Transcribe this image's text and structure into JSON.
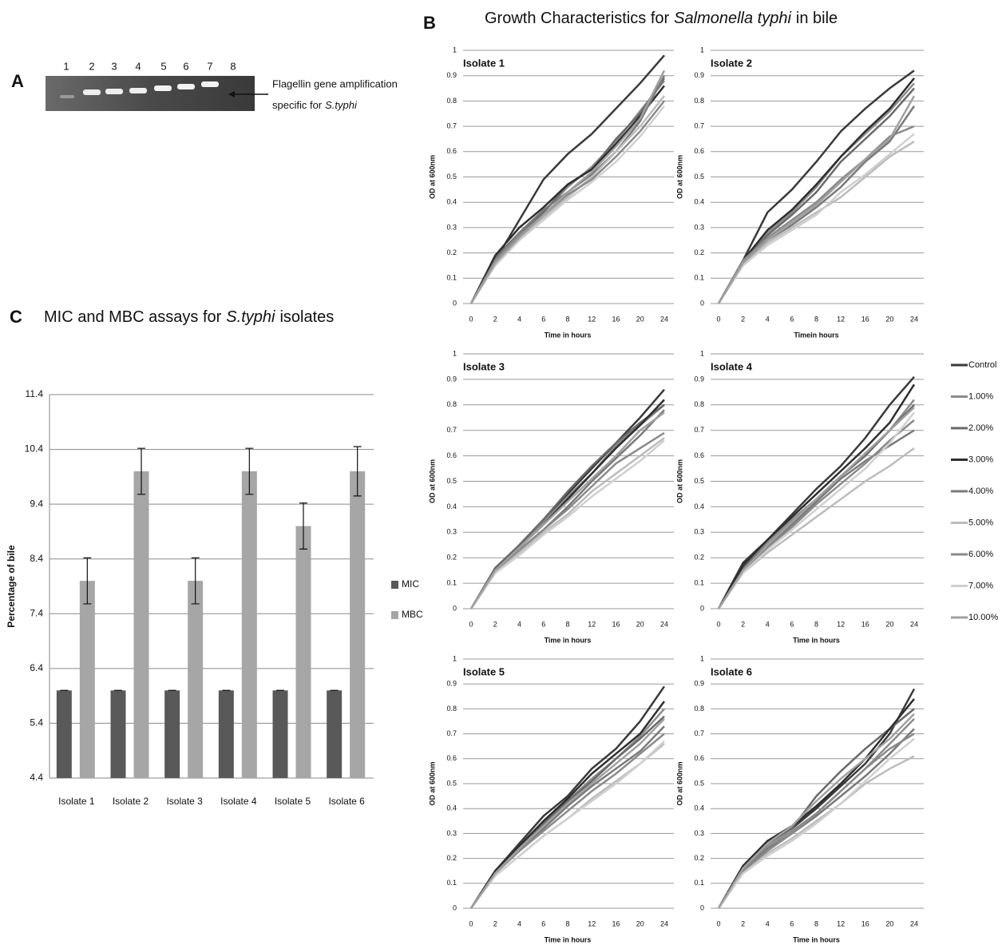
{
  "panel_labels": [
    "A",
    "B",
    "C"
  ],
  "gel": {
    "lanes": [
      "1",
      "2",
      "3",
      "4",
      "5",
      "6",
      "7",
      "8"
    ],
    "annotation": [
      "Flagellin gene amplification",
      "specific for",
      "S.typhi"
    ]
  },
  "growth_title": [
    "Growth Characteristics for",
    "Salmonella typhi",
    "in bile"
  ],
  "line_legend": [
    {
      "name": "Control",
      "color": "#3a3a3a"
    },
    {
      "name": "1.00%",
      "color": "#8c8c8c"
    },
    {
      "name": "2.00%",
      "color": "#6a6a6a"
    },
    {
      "name": "3.00%",
      "color": "#2e2e2e"
    },
    {
      "name": "4.00%",
      "color": "#7a7a7a"
    },
    {
      "name": "5.00%",
      "color": "#bcbcbc"
    },
    {
      "name": "6.00%",
      "color": "#8a8a8a"
    },
    {
      "name": "7.00%",
      "color": "#d0d0d0"
    },
    {
      "name": "10.00%",
      "color": "#a0a0a0"
    }
  ],
  "chart_data": [
    {
      "type": "bar",
      "title": [
        "MIC and MBC assays for",
        "S.typhi",
        "isolates"
      ],
      "y_label": "Percentage of bile",
      "categories": [
        "Isolate 1",
        "Isolate 2",
        "Isolate 3",
        "Isolate 4",
        "Isolate 5",
        "Isolate 6"
      ],
      "ylim": [
        4.4,
        11.4
      ],
      "yticks": [
        4.4,
        5.4,
        6.4,
        7.4,
        8.4,
        9.4,
        10.4,
        11.4
      ],
      "grid": true,
      "series": [
        {
          "name": "MIC",
          "color": "#595959",
          "values": [
            6,
            6,
            6,
            6,
            6,
            6
          ],
          "errors": [
            0,
            0,
            0,
            0,
            0,
            0
          ]
        },
        {
          "name": "MBC",
          "color": "#a6a6a6",
          "values": [
            8,
            10,
            8,
            10,
            9,
            10
          ],
          "errors": [
            0.42,
            0.42,
            0.42,
            0.42,
            0.42,
            0.45
          ]
        }
      ]
    },
    {
      "type": "line",
      "title": "Isolate 1",
      "x_label": "Time in hours",
      "y_label": "OD at 600nm",
      "categories": [
        "0",
        "2",
        "4",
        "6",
        "8",
        "12",
        "16",
        "20",
        "24"
      ],
      "ylim": [
        0,
        1
      ],
      "yticks": [
        0,
        0.1,
        0.2,
        0.3,
        0.4,
        0.5,
        0.6,
        0.7,
        0.8,
        0.9,
        1
      ],
      "grid": true,
      "series": [
        {
          "values": [
            0,
            0.17,
            0.33,
            0.49,
            0.59,
            0.67,
            0.77,
            0.87,
            0.98
          ]
        },
        {
          "values": [
            0,
            0.17,
            0.27,
            0.36,
            0.46,
            0.54,
            0.64,
            0.76,
            0.88
          ]
        },
        {
          "values": [
            0,
            0.18,
            0.28,
            0.36,
            0.47,
            0.53,
            0.65,
            0.75,
            0.89
          ]
        },
        {
          "values": [
            0,
            0.19,
            0.3,
            0.38,
            0.47,
            0.53,
            0.63,
            0.74,
            0.86
          ]
        },
        {
          "values": [
            0,
            0.17,
            0.28,
            0.37,
            0.44,
            0.51,
            0.6,
            0.72,
            0.9
          ]
        },
        {
          "values": [
            0,
            0.16,
            0.26,
            0.34,
            0.42,
            0.5,
            0.6,
            0.7,
            0.82
          ]
        },
        {
          "values": [
            0,
            0.17,
            0.27,
            0.35,
            0.43,
            0.49,
            0.58,
            0.68,
            0.8
          ]
        },
        {
          "values": [
            0,
            0.15,
            0.25,
            0.33,
            0.41,
            0.48,
            0.56,
            0.66,
            0.78
          ]
        },
        {
          "values": [
            0,
            0.16,
            0.26,
            0.35,
            0.44,
            0.52,
            0.62,
            0.73,
            0.92
          ]
        }
      ]
    },
    {
      "type": "line",
      "title": "Isolate 2",
      "x_label": "Timein hours",
      "y_label": "OD at 600nm",
      "categories": [
        "0",
        "2",
        "4",
        "6",
        "8",
        "12",
        "16",
        "20",
        "24"
      ],
      "ylim": [
        0,
        1
      ],
      "yticks": [
        0,
        0.1,
        0.2,
        0.3,
        0.4,
        0.5,
        0.6,
        0.7,
        0.8,
        0.9,
        1
      ],
      "grid": true,
      "series": [
        {
          "values": [
            0,
            0.17,
            0.36,
            0.45,
            0.56,
            0.68,
            0.77,
            0.85,
            0.92
          ]
        },
        {
          "values": [
            0,
            0.17,
            0.28,
            0.36,
            0.46,
            0.58,
            0.67,
            0.76,
            0.87
          ]
        },
        {
          "values": [
            0,
            0.17,
            0.27,
            0.35,
            0.44,
            0.56,
            0.65,
            0.74,
            0.85
          ]
        },
        {
          "values": [
            0,
            0.17,
            0.29,
            0.37,
            0.47,
            0.58,
            0.68,
            0.77,
            0.89
          ]
        },
        {
          "values": [
            0,
            0.17,
            0.25,
            0.31,
            0.38,
            0.46,
            0.56,
            0.64,
            0.78
          ]
        },
        {
          "values": [
            0,
            0.16,
            0.24,
            0.3,
            0.36,
            0.42,
            0.5,
            0.58,
            0.64
          ]
        },
        {
          "values": [
            0,
            0.17,
            0.26,
            0.33,
            0.4,
            0.49,
            0.57,
            0.66,
            0.7
          ]
        },
        {
          "values": [
            0,
            0.15,
            0.23,
            0.29,
            0.35,
            0.44,
            0.51,
            0.59,
            0.67
          ]
        },
        {
          "values": [
            0,
            0.16,
            0.25,
            0.32,
            0.39,
            0.48,
            0.57,
            0.65,
            0.82
          ]
        }
      ]
    },
    {
      "type": "line",
      "title": "Isolate 3",
      "x_label": "Time in hours",
      "y_label": "OD at 600nm",
      "categories": [
        "0",
        "2",
        "4",
        "6",
        "8",
        "12",
        "16",
        "20",
        "24"
      ],
      "ylim": [
        0,
        1
      ],
      "yticks": [
        0,
        0.1,
        0.2,
        0.3,
        0.4,
        0.5,
        0.6,
        0.7,
        0.8,
        0.9,
        1
      ],
      "grid": true,
      "series": [
        {
          "values": [
            0,
            0.15,
            0.25,
            0.35,
            0.45,
            0.55,
            0.65,
            0.75,
            0.86
          ]
        },
        {
          "values": [
            0,
            0.15,
            0.24,
            0.34,
            0.44,
            0.53,
            0.64,
            0.72,
            0.8
          ]
        },
        {
          "values": [
            0,
            0.16,
            0.25,
            0.35,
            0.46,
            0.56,
            0.65,
            0.73,
            0.8
          ]
        },
        {
          "values": [
            0,
            0.15,
            0.24,
            0.33,
            0.43,
            0.53,
            0.63,
            0.72,
            0.82
          ]
        },
        {
          "values": [
            0,
            0.14,
            0.23,
            0.31,
            0.4,
            0.5,
            0.59,
            0.68,
            0.78
          ]
        },
        {
          "values": [
            0,
            0.14,
            0.22,
            0.3,
            0.37,
            0.46,
            0.53,
            0.6,
            0.67
          ]
        },
        {
          "values": [
            0,
            0.15,
            0.23,
            0.31,
            0.39,
            0.48,
            0.57,
            0.63,
            0.69
          ]
        },
        {
          "values": [
            0,
            0.14,
            0.21,
            0.29,
            0.36,
            0.44,
            0.51,
            0.58,
            0.66
          ]
        },
        {
          "values": [
            0,
            0.15,
            0.24,
            0.33,
            0.42,
            0.51,
            0.6,
            0.7,
            0.77
          ]
        }
      ]
    },
    {
      "type": "line",
      "title": "Isolate 4",
      "x_label": "Time in hours",
      "y_label": "OD at 600nm",
      "categories": [
        "0",
        "2",
        "4",
        "6",
        "8",
        "12",
        "16",
        "20",
        "24"
      ],
      "ylim": [
        0,
        1
      ],
      "yticks": [
        0,
        0.1,
        0.2,
        0.3,
        0.4,
        0.5,
        0.6,
        0.7,
        0.8,
        0.9,
        1
      ],
      "grid": true,
      "series": [
        {
          "values": [
            0,
            0.18,
            0.27,
            0.37,
            0.47,
            0.56,
            0.67,
            0.8,
            0.91
          ]
        },
        {
          "values": [
            0,
            0.16,
            0.26,
            0.35,
            0.43,
            0.52,
            0.6,
            0.7,
            0.82
          ]
        },
        {
          "values": [
            0,
            0.16,
            0.25,
            0.34,
            0.43,
            0.52,
            0.6,
            0.7,
            0.8
          ]
        },
        {
          "values": [
            0,
            0.17,
            0.27,
            0.36,
            0.45,
            0.54,
            0.63,
            0.73,
            0.88
          ]
        },
        {
          "values": [
            0,
            0.15,
            0.24,
            0.33,
            0.42,
            0.51,
            0.58,
            0.64,
            0.7
          ]
        },
        {
          "values": [
            0,
            0.14,
            0.22,
            0.29,
            0.36,
            0.43,
            0.5,
            0.56,
            0.63
          ]
        },
        {
          "values": [
            0,
            0.15,
            0.24,
            0.32,
            0.41,
            0.49,
            0.57,
            0.66,
            0.74
          ]
        },
        {
          "values": [
            0,
            0.14,
            0.23,
            0.31,
            0.39,
            0.47,
            0.55,
            0.65,
            0.77
          ]
        },
        {
          "values": [
            0,
            0.15,
            0.25,
            0.34,
            0.43,
            0.52,
            0.61,
            0.7,
            0.79
          ]
        }
      ]
    },
    {
      "type": "line",
      "title": "Isolate 5",
      "x_label": "Time in hours",
      "y_label": "OD at 600nm",
      "categories": [
        "0",
        "2",
        "4",
        "6",
        "8",
        "12",
        "16",
        "20",
        "24"
      ],
      "ylim": [
        0,
        1
      ],
      "yticks": [
        0,
        0.1,
        0.2,
        0.3,
        0.4,
        0.5,
        0.6,
        0.7,
        0.8,
        0.9,
        1
      ],
      "grid": true,
      "series": [
        {
          "values": [
            0,
            0.15,
            0.26,
            0.37,
            0.45,
            0.56,
            0.64,
            0.75,
            0.89
          ]
        },
        {
          "values": [
            0,
            0.15,
            0.25,
            0.34,
            0.43,
            0.52,
            0.6,
            0.69,
            0.8
          ]
        },
        {
          "values": [
            0,
            0.14,
            0.24,
            0.34,
            0.43,
            0.51,
            0.6,
            0.68,
            0.77
          ]
        },
        {
          "values": [
            0,
            0.15,
            0.25,
            0.35,
            0.44,
            0.54,
            0.62,
            0.7,
            0.83
          ]
        },
        {
          "values": [
            0,
            0.14,
            0.23,
            0.32,
            0.41,
            0.49,
            0.56,
            0.63,
            0.73
          ]
        },
        {
          "values": [
            0,
            0.13,
            0.21,
            0.29,
            0.36,
            0.44,
            0.51,
            0.58,
            0.66
          ]
        },
        {
          "values": [
            0,
            0.14,
            0.23,
            0.31,
            0.39,
            0.47,
            0.54,
            0.62,
            0.7
          ]
        },
        {
          "values": [
            0,
            0.13,
            0.21,
            0.29,
            0.36,
            0.43,
            0.5,
            0.58,
            0.67
          ]
        },
        {
          "values": [
            0,
            0.14,
            0.24,
            0.33,
            0.42,
            0.5,
            0.58,
            0.66,
            0.76
          ]
        }
      ]
    },
    {
      "type": "line",
      "title": "Isolate 6",
      "x_label": "Time in hours",
      "y_label": "OD at 600nm",
      "categories": [
        "0",
        "2",
        "4",
        "6",
        "8",
        "12",
        "16",
        "20",
        "24"
      ],
      "ylim": [
        0,
        1
      ],
      "yticks": [
        0,
        0.1,
        0.2,
        0.3,
        0.4,
        0.5,
        0.6,
        0.7,
        0.8,
        0.9,
        1
      ],
      "grid": true,
      "series": [
        {
          "values": [
            0,
            0.17,
            0.27,
            0.32,
            0.4,
            0.49,
            0.58,
            0.7,
            0.88
          ]
        },
        {
          "values": [
            0,
            0.16,
            0.25,
            0.31,
            0.38,
            0.47,
            0.56,
            0.66,
            0.76
          ]
        },
        {
          "values": [
            0,
            0.16,
            0.26,
            0.32,
            0.45,
            0.55,
            0.64,
            0.72,
            0.8
          ]
        },
        {
          "values": [
            0,
            0.17,
            0.27,
            0.33,
            0.41,
            0.5,
            0.6,
            0.72,
            0.84
          ]
        },
        {
          "values": [
            0,
            0.15,
            0.24,
            0.3,
            0.37,
            0.45,
            0.53,
            0.62,
            0.72
          ]
        },
        {
          "values": [
            0,
            0.14,
            0.22,
            0.28,
            0.35,
            0.42,
            0.5,
            0.56,
            0.61
          ]
        },
        {
          "values": [
            0,
            0.15,
            0.23,
            0.3,
            0.38,
            0.47,
            0.56,
            0.64,
            0.7
          ]
        },
        {
          "values": [
            0,
            0.14,
            0.21,
            0.27,
            0.34,
            0.42,
            0.51,
            0.6,
            0.68
          ]
        },
        {
          "values": [
            0,
            0.16,
            0.26,
            0.33,
            0.43,
            0.52,
            0.6,
            0.68,
            0.78
          ]
        }
      ]
    }
  ]
}
